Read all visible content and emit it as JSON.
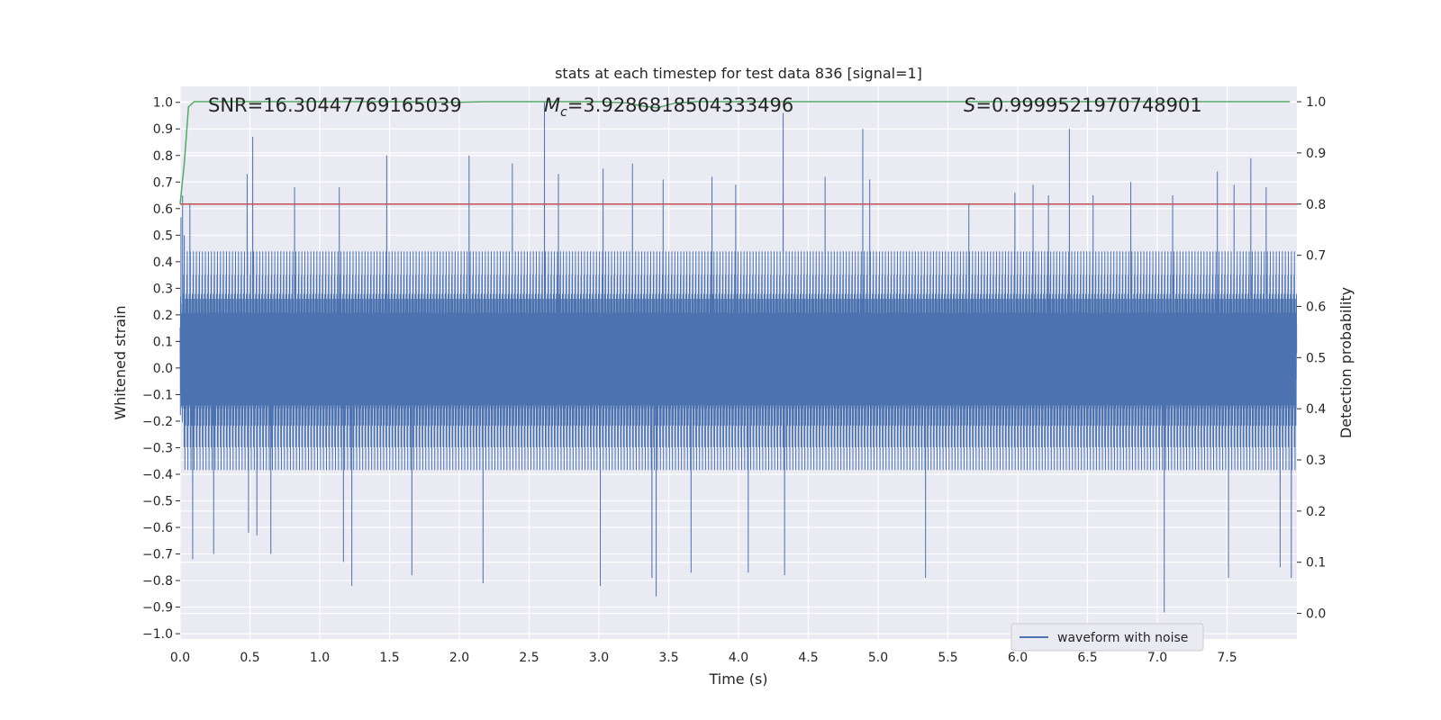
{
  "chart_data": {
    "type": "line",
    "title": "stats at each timestep for test data 836 [signal=1]",
    "xlabel": "Time (s)",
    "ylabel": "Whitened strain",
    "y2label": "Detection probability",
    "xlim": [
      0.0,
      8.0
    ],
    "ylim": [
      -1.02,
      1.06
    ],
    "y2lim": [
      -0.05,
      1.03
    ],
    "x_ticks": [
      "0.0",
      "0.5",
      "1.0",
      "1.5",
      "2.0",
      "2.5",
      "3.0",
      "3.5",
      "4.0",
      "4.5",
      "5.0",
      "5.5",
      "6.0",
      "6.5",
      "7.0",
      "7.5"
    ],
    "y_ticks": [
      "1.0",
      "0.9",
      "0.8",
      "0.7",
      "0.6",
      "0.5",
      "0.4",
      "0.3",
      "0.2",
      "0.1",
      "0.0",
      "−0.1",
      "−0.2",
      "−0.3",
      "−0.4",
      "−0.5",
      "−0.6",
      "−0.7",
      "−0.8",
      "−0.9",
      "−1.0"
    ],
    "y2_ticks": [
      "1.0",
      "0.9",
      "0.8",
      "0.7",
      "0.6",
      "0.5",
      "0.4",
      "0.3",
      "0.2",
      "0.1",
      "0.0"
    ],
    "grid": true,
    "legend_placement": "lower-right",
    "annotations": {
      "snr": "SNR=16.30447769165039",
      "mc_symbol": "M",
      "mc_sub": "c",
      "mc_value": "=3.9286818504333496",
      "s_symbol": "S",
      "s_value": "=0.9999521970748901"
    },
    "series": [
      {
        "name": "waveform with noise",
        "axis": "left",
        "color": "#4c72b0",
        "sample_rate_hz": 2048,
        "x_end": 7.999,
        "amplitude_envelope": 0.42,
        "peaks": [
          {
            "x": 0.03,
            "y": 0.5
          },
          {
            "x": 0.07,
            "y": 0.62
          },
          {
            "x": 0.09,
            "y": -0.72
          },
          {
            "x": 0.24,
            "y": 0.62
          },
          {
            "x": 0.24,
            "y": -0.7
          },
          {
            "x": 0.48,
            "y": 0.73
          },
          {
            "x": 0.49,
            "y": -0.62
          },
          {
            "x": 0.52,
            "y": 0.87
          },
          {
            "x": 0.55,
            "y": -0.63
          },
          {
            "x": 0.65,
            "y": -0.7
          },
          {
            "x": 0.82,
            "y": 0.68
          },
          {
            "x": 1.14,
            "y": 0.68
          },
          {
            "x": 1.17,
            "y": -0.73
          },
          {
            "x": 1.23,
            "y": -0.82
          },
          {
            "x": 1.48,
            "y": 0.8
          },
          {
            "x": 1.66,
            "y": -0.78
          },
          {
            "x": 2.07,
            "y": 0.8
          },
          {
            "x": 2.17,
            "y": -0.81
          },
          {
            "x": 2.38,
            "y": 0.77
          },
          {
            "x": 2.61,
            "y": 1.0
          },
          {
            "x": 2.71,
            "y": 0.73
          },
          {
            "x": 3.01,
            "y": -0.82
          },
          {
            "x": 3.03,
            "y": 0.75
          },
          {
            "x": 3.24,
            "y": 0.77
          },
          {
            "x": 3.38,
            "y": -0.79
          },
          {
            "x": 3.41,
            "y": -0.86
          },
          {
            "x": 3.46,
            "y": 0.71
          },
          {
            "x": 3.66,
            "y": -0.77
          },
          {
            "x": 3.81,
            "y": 0.72
          },
          {
            "x": 3.98,
            "y": 0.69
          },
          {
            "x": 4.07,
            "y": -0.77
          },
          {
            "x": 4.32,
            "y": 0.96
          },
          {
            "x": 4.33,
            "y": -0.78
          },
          {
            "x": 4.62,
            "y": 0.72
          },
          {
            "x": 4.89,
            "y": 0.9
          },
          {
            "x": 4.94,
            "y": 0.71
          },
          {
            "x": 5.34,
            "y": -0.79
          },
          {
            "x": 5.65,
            "y": 0.62
          },
          {
            "x": 5.98,
            "y": 0.66
          },
          {
            "x": 6.11,
            "y": 0.69
          },
          {
            "x": 6.22,
            "y": 0.65
          },
          {
            "x": 6.37,
            "y": 0.9
          },
          {
            "x": 6.54,
            "y": 0.65
          },
          {
            "x": 6.81,
            "y": 0.7
          },
          {
            "x": 7.05,
            "y": -0.92
          },
          {
            "x": 7.11,
            "y": 0.65
          },
          {
            "x": 7.43,
            "y": 0.74
          },
          {
            "x": 7.51,
            "y": -0.79
          },
          {
            "x": 7.55,
            "y": 0.69
          },
          {
            "x": 7.67,
            "y": 0.79
          },
          {
            "x": 7.78,
            "y": 0.68
          },
          {
            "x": 7.88,
            "y": -0.75
          },
          {
            "x": 7.96,
            "y": -0.79
          }
        ]
      },
      {
        "axis": "right",
        "color": "#55a868",
        "x": [
          0.0,
          0.03,
          0.06,
          0.1,
          0.2,
          1.0,
          1.5,
          2.0,
          2.2,
          2.5,
          3.0,
          3.2,
          3.3,
          3.42,
          3.55,
          3.7,
          4.0,
          5.0,
          6.0,
          7.0,
          7.95
        ],
        "y": [
          0.8,
          0.88,
          0.99,
          1.0,
          1.0,
          1.0,
          1.0,
          0.999,
          1.0,
          1.0,
          1.0,
          0.998,
          0.992,
          0.988,
          0.998,
          1.0,
          1.0,
          1.0,
          1.0,
          1.0,
          1.0
        ]
      },
      {
        "axis": "right",
        "color": "#c44e52",
        "x": [
          0.0,
          8.0
        ],
        "y": [
          0.8,
          0.8
        ]
      }
    ]
  }
}
